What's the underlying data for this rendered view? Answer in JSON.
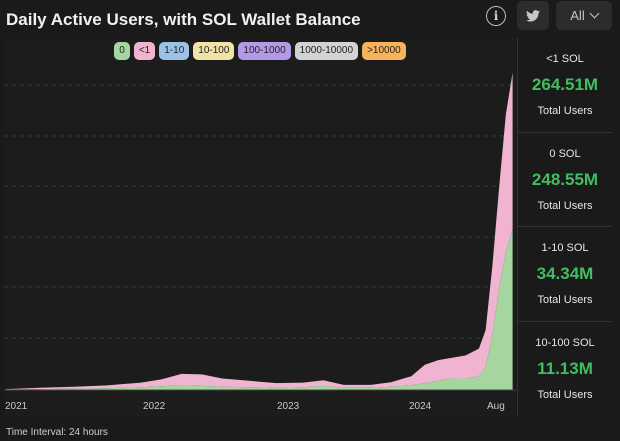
{
  "header": {
    "title": "Daily Active Users, with SOL Wallet Balance",
    "info_icon": "info-icon",
    "twitter_icon": "twitter-icon",
    "filter_label": "All"
  },
  "legend": [
    {
      "label": "0",
      "color": "#a6d6a0"
    },
    {
      "label": "<1",
      "color": "#f0b4d0"
    },
    {
      "label": "1-10",
      "color": "#9cc3e6"
    },
    {
      "label": "10-100",
      "color": "#f2e3a6"
    },
    {
      "label": "100-1000",
      "color": "#b39ae8"
    },
    {
      "label": "1000-10000",
      "color": "#d3d3d3"
    },
    {
      "label": ">10000",
      "color": "#f7b35a"
    }
  ],
  "stats": [
    {
      "label": "<1 SOL",
      "value": "264.51M",
      "sub": "Total Users"
    },
    {
      "label": "0 SOL",
      "value": "248.55M",
      "sub": "Total Users"
    },
    {
      "label": "1-10 SOL",
      "value": "34.34M",
      "sub": "Total Users"
    },
    {
      "label": "10-100 SOL",
      "value": "11.13M",
      "sub": "Total Users"
    }
  ],
  "footer": {
    "text": "Time Interval: 24 hours"
  },
  "chart_data": {
    "type": "area",
    "stacked": true,
    "grid": "horizontal dashed",
    "x_ticks": [
      "2021",
      "2022",
      "2023",
      "2024",
      "Aug"
    ],
    "series": [
      {
        "name": "0",
        "color": "#a6d6a0"
      },
      {
        "name": "<1",
        "color": "#f0b4d0"
      }
    ],
    "x": [
      2021.0,
      2021.25,
      2021.5,
      2021.75,
      2022.0,
      2022.15,
      2022.3,
      2022.45,
      2022.6,
      2022.8,
      2023.0,
      2023.2,
      2023.35,
      2023.5,
      2023.7,
      2023.85,
      2024.0,
      2024.1,
      2024.2,
      2024.3,
      2024.4,
      2024.5,
      2024.55,
      2024.6,
      2024.65,
      2024.7,
      2024.75
    ],
    "values_0": [
      0.1,
      0.2,
      0.3,
      0.4,
      0.6,
      0.8,
      1.0,
      0.9,
      0.7,
      0.6,
      0.5,
      0.6,
      0.9,
      0.5,
      0.5,
      0.7,
      1.0,
      1.5,
      2.0,
      2.5,
      2.5,
      3.0,
      5.0,
      12.0,
      22.0,
      30.0,
      35.0
    ],
    "values_lt1": [
      0.1,
      0.3,
      0.4,
      0.6,
      1.0,
      1.5,
      2.5,
      2.5,
      1.8,
      1.4,
      1.0,
      1.0,
      1.2,
      0.6,
      0.6,
      1.0,
      2.0,
      4.0,
      4.5,
      4.5,
      5.0,
      6.0,
      8.0,
      15.0,
      22.0,
      30.0,
      34.0
    ],
    "ylim": [
      0,
      70
    ]
  }
}
